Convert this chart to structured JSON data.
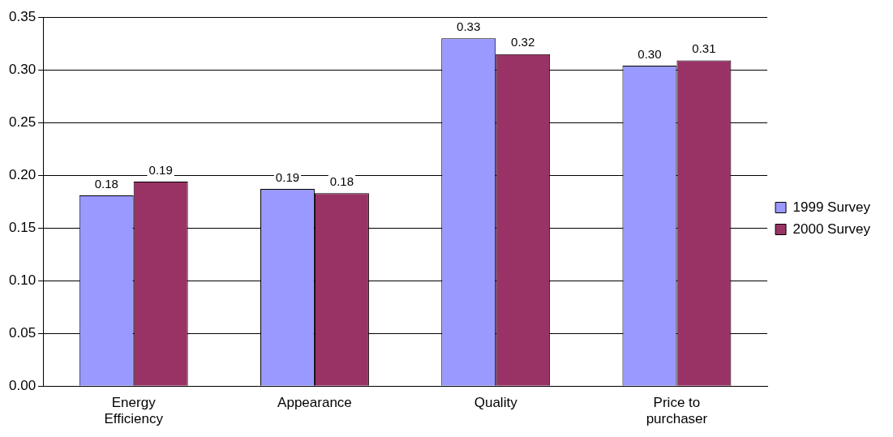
{
  "chart_data": {
    "type": "bar",
    "categories": [
      "Energy Efficiency",
      "Appearance",
      "Quality",
      "Price to purchaser"
    ],
    "series": [
      {
        "name": "1999 Survey",
        "color": "#9999ff",
        "values": [
          0.181,
          0.187,
          0.33,
          0.304
        ],
        "value_labels": [
          "0.18",
          "0.19",
          "0.33",
          "0.30"
        ]
      },
      {
        "name": "2000 Survey",
        "color": "#993366",
        "values": [
          0.194,
          0.183,
          0.315,
          0.309
        ],
        "value_labels": [
          "0.19",
          "0.18",
          "0.32",
          "0.31"
        ]
      }
    ],
    "ylim": [
      0,
      0.35
    ],
    "yticks": [
      {
        "value": 0,
        "label": "0.00"
      },
      {
        "value": 0.05,
        "label": "0.05"
      },
      {
        "value": 0.1,
        "label": "0.10"
      },
      {
        "value": 0.15,
        "label": "0.15"
      },
      {
        "value": 0.2,
        "label": "0.20"
      },
      {
        "value": 0.25,
        "label": "0.25"
      },
      {
        "value": 0.3,
        "label": "0.30"
      },
      {
        "value": 0.35,
        "label": "0.35"
      }
    ],
    "grid": "y",
    "legend": "right"
  }
}
